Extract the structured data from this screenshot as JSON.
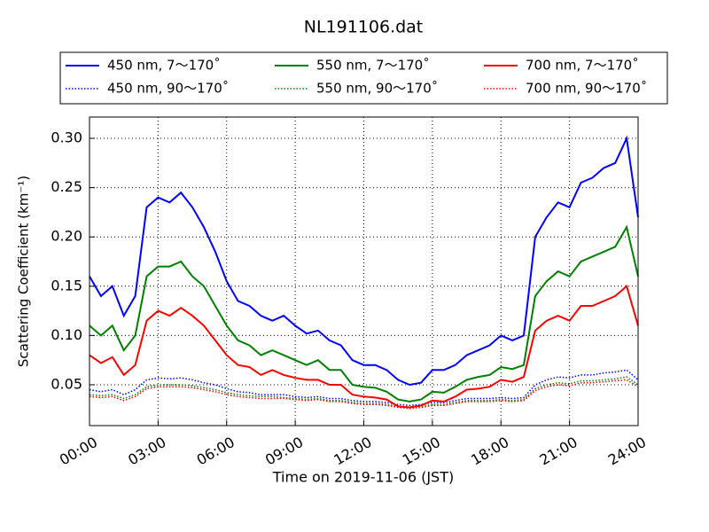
{
  "chart_data": {
    "type": "line",
    "title": "NL191106.dat",
    "x_label": "Time on 2019-11-06 (JST)",
    "y_label": "Scattering Coefficient (km⁻¹)",
    "x": [
      0,
      0.5,
      1,
      1.5,
      2,
      2.5,
      3,
      3.5,
      4,
      4.5,
      5,
      5.5,
      6,
      6.5,
      7,
      7.5,
      8,
      8.5,
      9,
      9.5,
      10,
      10.5,
      11,
      11.5,
      12,
      12.5,
      13,
      13.5,
      14,
      14.5,
      15,
      15.5,
      16,
      16.5,
      17,
      17.5,
      18,
      18.5,
      19,
      19.5,
      20,
      20.5,
      21,
      21.5,
      22,
      22.5,
      23,
      23.5,
      24
    ],
    "xlim": [
      0,
      24
    ],
    "xticks": [
      {
        "value": 0,
        "label": "00:00"
      },
      {
        "value": 3,
        "label": "03:00"
      },
      {
        "value": 6,
        "label": "06:00"
      },
      {
        "value": 9,
        "label": "09:00"
      },
      {
        "value": 12,
        "label": "12:00"
      },
      {
        "value": 15,
        "label": "15:00"
      },
      {
        "value": 18,
        "label": "18:00"
      },
      {
        "value": 21,
        "label": "21:00"
      },
      {
        "value": 24,
        "label": "24:00"
      }
    ],
    "ylim": [
      0.0086,
      0.3216
    ],
    "yticks": [
      {
        "value": 0.05,
        "label": "0.05"
      },
      {
        "value": 0.1,
        "label": "0.10"
      },
      {
        "value": 0.15,
        "label": "0.15"
      },
      {
        "value": 0.2,
        "label": "0.20"
      },
      {
        "value": 0.25,
        "label": "0.25"
      },
      {
        "value": 0.3,
        "label": "0.30"
      }
    ],
    "grid": true,
    "legend": "top",
    "series": [
      {
        "name": "450 nm, 7～170˚",
        "color": "#0000ff",
        "linestyle": "solid",
        "values": [
          0.16,
          0.14,
          0.15,
          0.12,
          0.14,
          0.23,
          0.24,
          0.235,
          0.245,
          0.23,
          0.21,
          0.185,
          0.155,
          0.135,
          0.13,
          0.12,
          0.115,
          0.12,
          0.11,
          0.102,
          0.105,
          0.095,
          0.09,
          0.075,
          0.07,
          0.07,
          0.065,
          0.055,
          0.05,
          0.052,
          0.065,
          0.065,
          0.07,
          0.08,
          0.085,
          0.09,
          0.1,
          0.095,
          0.1,
          0.2,
          0.22,
          0.235,
          0.23,
          0.255,
          0.26,
          0.27,
          0.275,
          0.3,
          0.22
        ]
      },
      {
        "name": "450 nm, 90～170˚",
        "color": "#0000ff",
        "linestyle": "dotted",
        "values": [
          0.045,
          0.043,
          0.045,
          0.04,
          0.045,
          0.055,
          0.057,
          0.056,
          0.057,
          0.055,
          0.052,
          0.05,
          0.046,
          0.043,
          0.042,
          0.04,
          0.04,
          0.04,
          0.038,
          0.037,
          0.038,
          0.036,
          0.036,
          0.034,
          0.033,
          0.033,
          0.032,
          0.03,
          0.029,
          0.03,
          0.032,
          0.032,
          0.034,
          0.036,
          0.036,
          0.036,
          0.037,
          0.036,
          0.037,
          0.05,
          0.055,
          0.058,
          0.057,
          0.06,
          0.06,
          0.062,
          0.063,
          0.065,
          0.055
        ]
      },
      {
        "name": "550 nm, 7～170˚",
        "color": "#008000",
        "linestyle": "solid",
        "values": [
          0.11,
          0.1,
          0.11,
          0.085,
          0.1,
          0.16,
          0.17,
          0.17,
          0.175,
          0.16,
          0.15,
          0.13,
          0.11,
          0.095,
          0.09,
          0.08,
          0.085,
          0.08,
          0.075,
          0.07,
          0.075,
          0.065,
          0.065,
          0.05,
          0.048,
          0.047,
          0.043,
          0.035,
          0.033,
          0.035,
          0.043,
          0.042,
          0.048,
          0.055,
          0.058,
          0.06,
          0.068,
          0.066,
          0.07,
          0.14,
          0.155,
          0.165,
          0.16,
          0.175,
          0.18,
          0.185,
          0.19,
          0.21,
          0.16
        ]
      },
      {
        "name": "550 nm, 90～170˚",
        "color": "#008000",
        "linestyle": "dotted",
        "values": [
          0.04,
          0.039,
          0.04,
          0.036,
          0.04,
          0.048,
          0.05,
          0.05,
          0.05,
          0.049,
          0.047,
          0.045,
          0.042,
          0.04,
          0.039,
          0.038,
          0.038,
          0.037,
          0.036,
          0.035,
          0.036,
          0.034,
          0.034,
          0.032,
          0.031,
          0.031,
          0.03,
          0.028,
          0.027,
          0.028,
          0.03,
          0.03,
          0.032,
          0.034,
          0.034,
          0.034,
          0.035,
          0.034,
          0.035,
          0.046,
          0.05,
          0.052,
          0.051,
          0.054,
          0.054,
          0.055,
          0.056,
          0.058,
          0.05
        ]
      },
      {
        "name": "700 nm, 7～170˚",
        "color": "#ff0000",
        "linestyle": "solid",
        "values": [
          0.08,
          0.072,
          0.078,
          0.06,
          0.07,
          0.115,
          0.125,
          0.12,
          0.128,
          0.12,
          0.11,
          0.095,
          0.08,
          0.07,
          0.068,
          0.06,
          0.065,
          0.06,
          0.057,
          0.055,
          0.055,
          0.05,
          0.05,
          0.04,
          0.038,
          0.037,
          0.035,
          0.028,
          0.027,
          0.029,
          0.034,
          0.033,
          0.038,
          0.045,
          0.046,
          0.048,
          0.055,
          0.053,
          0.058,
          0.105,
          0.115,
          0.12,
          0.115,
          0.13,
          0.13,
          0.135,
          0.14,
          0.15,
          0.11
        ]
      },
      {
        "name": "700 nm, 90～170˚",
        "color": "#ff0000",
        "linestyle": "dotted",
        "values": [
          0.038,
          0.037,
          0.038,
          0.034,
          0.038,
          0.046,
          0.048,
          0.048,
          0.048,
          0.047,
          0.045,
          0.043,
          0.04,
          0.038,
          0.037,
          0.036,
          0.036,
          0.036,
          0.035,
          0.034,
          0.035,
          0.033,
          0.033,
          0.031,
          0.03,
          0.03,
          0.029,
          0.027,
          0.026,
          0.027,
          0.029,
          0.029,
          0.031,
          0.033,
          0.033,
          0.033,
          0.034,
          0.033,
          0.034,
          0.044,
          0.048,
          0.05,
          0.049,
          0.052,
          0.052,
          0.053,
          0.054,
          0.055,
          0.048
        ]
      }
    ]
  }
}
